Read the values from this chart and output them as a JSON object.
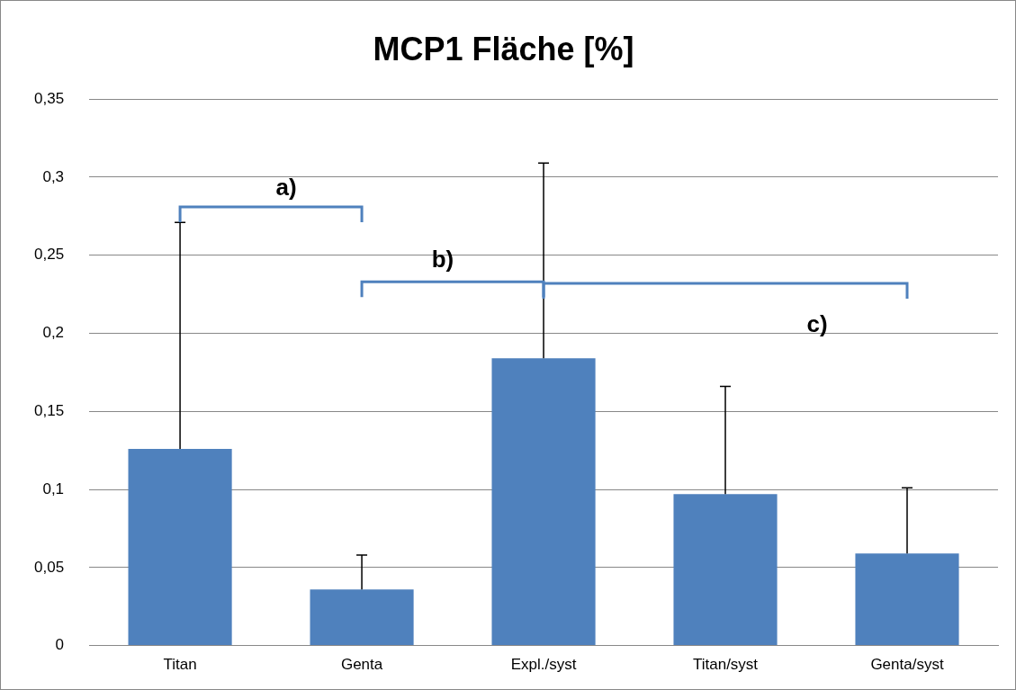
{
  "chart_data": {
    "type": "bar",
    "title": "MCP1 Fläche [%]",
    "categories": [
      "Titan",
      "Genta",
      "Expl./syst",
      "Titan/syst",
      "Genta/syst"
    ],
    "values": [
      0.126,
      0.036,
      0.184,
      0.097,
      0.059
    ],
    "errors": [
      [
        0.126,
        0.271
      ],
      [
        0.036,
        0.058
      ],
      [
        0.184,
        0.309
      ],
      [
        0.097,
        0.166
      ],
      [
        0.059,
        0.101
      ]
    ],
    "color": "#4f81bd",
    "ylim": [
      0,
      0.35
    ],
    "yticks": [
      {
        "value": 0,
        "label": "0"
      },
      {
        "value": 0.05,
        "label": "0,05"
      },
      {
        "value": 0.1,
        "label": "0,1"
      },
      {
        "value": 0.15,
        "label": "0,15"
      },
      {
        "value": 0.2,
        "label": "0,2"
      },
      {
        "value": 0.25,
        "label": "0,25"
      },
      {
        "value": 0.3,
        "label": "0,3"
      },
      {
        "value": 0.35,
        "label": "0,35"
      }
    ],
    "grid": "y",
    "annotations": [
      "a)",
      "b)",
      "c)"
    ]
  }
}
